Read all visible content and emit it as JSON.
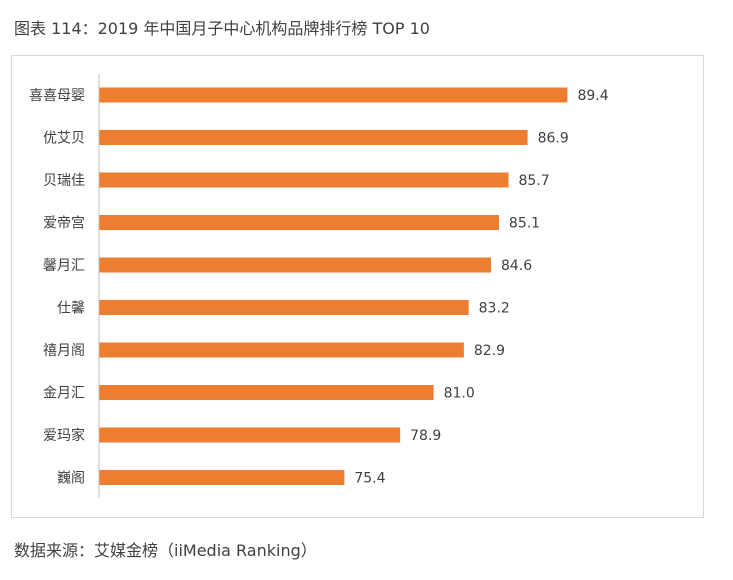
{
  "figure": {
    "title": "图表 114：2019 年中国月子中心机构品牌排行榜 TOP 10",
    "source": "数据来源：艾媒金榜（iiMedia Ranking）"
  },
  "colors": {
    "bar": "#ed7d31",
    "axis": "#bfbfbf",
    "text": "#404040",
    "border": "#d9d9d9"
  },
  "chart_data": {
    "type": "bar",
    "orientation": "horizontal",
    "categories": [
      "喜喜母婴",
      "优艾贝",
      "贝瑞佳",
      "爱帝宫",
      "馨月汇",
      "仕馨",
      "禧月阁",
      "金月汇",
      "爱玛家",
      "巍阁"
    ],
    "values": [
      89.4,
      86.9,
      85.7,
      85.1,
      84.6,
      83.2,
      82.9,
      81.0,
      78.9,
      75.4
    ],
    "value_labels": [
      "89.4",
      "86.9",
      "85.7",
      "85.1",
      "84.6",
      "83.2",
      "82.9",
      "81.0",
      "78.9",
      "75.4"
    ],
    "xlim": [
      60,
      90
    ],
    "grid": false,
    "legend": "none"
  }
}
